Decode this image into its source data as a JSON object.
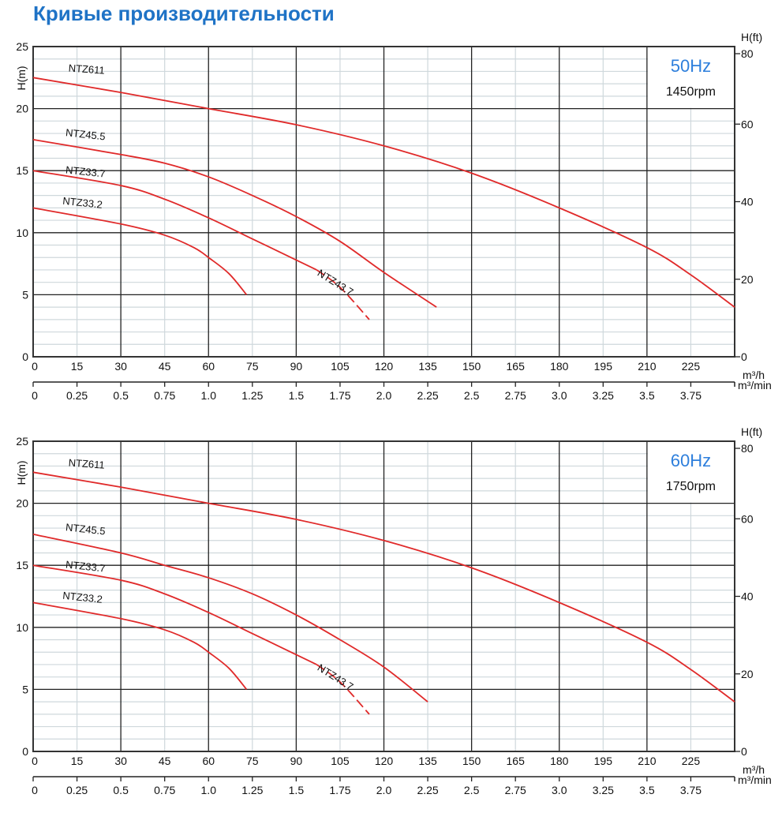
{
  "title": "Кривые производительности",
  "colors": {
    "title": "#1f73c6",
    "curve": "#e02a2a",
    "freq": "#2e7fdc",
    "major_grid": "#222222",
    "minor_grid": "#cfd8dc"
  },
  "chart_data": [
    {
      "type": "line",
      "frequency": "50Hz",
      "speed": "1450rpm",
      "ylabel_left": "H(m)",
      "ylabel_right": "H(ft)",
      "xlabel_primary": "m³/h",
      "xlabel_secondary": "m³/min",
      "xlim": [
        0,
        240
      ],
      "ylim": [
        0,
        25
      ],
      "ylim_ft": [
        0,
        80
      ],
      "grid": true,
      "x_ticks": [
        "0",
        "15",
        "30",
        "45",
        "60",
        "75",
        "90",
        "105",
        "120",
        "135",
        "150",
        "165",
        "180",
        "195",
        "210",
        "225"
      ],
      "x_ticks_min": [
        "0",
        "0.25",
        "0.5",
        "0.75",
        "1.0",
        "1.25",
        "1.5",
        "1.75",
        "2.0",
        "2.25",
        "2.5",
        "2.75",
        "3.0",
        "3.25",
        "3.5",
        "3.75"
      ],
      "y_ticks": [
        "0",
        "5",
        "10",
        "15",
        "20",
        "25"
      ],
      "y_ticks_ft": [
        "0",
        "20",
        "40",
        "60",
        "80"
      ],
      "series": [
        {
          "name": "NTZ611",
          "points": [
            [
              0,
              22.5
            ],
            [
              30,
              21.3
            ],
            [
              60,
              20
            ],
            [
              90,
              18.7
            ],
            [
              120,
              17
            ],
            [
              150,
              14.8
            ],
            [
              180,
              12
            ],
            [
              210,
              8.8
            ],
            [
              225,
              6.6
            ],
            [
              240,
              4
            ]
          ]
        },
        {
          "name": "NTZ45.5",
          "points": [
            [
              0,
              17.5
            ],
            [
              30,
              16.3
            ],
            [
              45,
              15.6
            ],
            [
              60,
              14.5
            ],
            [
              75,
              13
            ],
            [
              90,
              11.3
            ],
            [
              105,
              9.3
            ],
            [
              120,
              6.8
            ],
            [
              138,
              4
            ]
          ]
        },
        {
          "name": "NTZ33.7",
          "points": [
            [
              0,
              15
            ],
            [
              30,
              13.8
            ],
            [
              45,
              12.7
            ],
            [
              60,
              11.2
            ],
            [
              75,
              9.5
            ],
            [
              90,
              7.8
            ],
            [
              97,
              7
            ]
          ]
        },
        {
          "name": "NTZ43.7",
          "dashed": true,
          "points": [
            [
              97,
              7
            ],
            [
              105,
              5.6
            ],
            [
              115,
              3
            ]
          ]
        },
        {
          "name": "NTZ33.2",
          "points": [
            [
              0,
              12
            ],
            [
              30,
              10.7
            ],
            [
              45,
              9.8
            ],
            [
              55,
              8.8
            ],
            [
              60,
              8
            ],
            [
              67,
              6.7
            ],
            [
              73,
              5
            ]
          ]
        }
      ]
    },
    {
      "type": "line",
      "frequency": "60Hz",
      "speed": "1750rpm",
      "ylabel_left": "H(m)",
      "ylabel_right": "H(ft)",
      "xlabel_primary": "m³/h",
      "xlabel_secondary": "m³/min",
      "xlim": [
        0,
        240
      ],
      "ylim": [
        0,
        25
      ],
      "ylim_ft": [
        0,
        80
      ],
      "grid": true,
      "x_ticks": [
        "0",
        "15",
        "30",
        "45",
        "60",
        "75",
        "90",
        "105",
        "120",
        "135",
        "150",
        "165",
        "180",
        "195",
        "210",
        "225"
      ],
      "x_ticks_min": [
        "0",
        "0.25",
        "0.5",
        "0.75",
        "1.0",
        "1.25",
        "1.5",
        "1.75",
        "2.0",
        "2.25",
        "2.5",
        "2.75",
        "3.0",
        "3.25",
        "3.5",
        "3.75"
      ],
      "y_ticks": [
        "0",
        "5",
        "10",
        "15",
        "20",
        "25"
      ],
      "y_ticks_ft": [
        "0",
        "20",
        "40",
        "60",
        "80"
      ],
      "series": [
        {
          "name": "NTZ611",
          "points": [
            [
              0,
              22.5
            ],
            [
              30,
              21.3
            ],
            [
              60,
              20
            ],
            [
              90,
              18.7
            ],
            [
              120,
              17
            ],
            [
              150,
              14.8
            ],
            [
              180,
              12
            ],
            [
              210,
              8.8
            ],
            [
              225,
              6.6
            ],
            [
              240,
              4
            ]
          ]
        },
        {
          "name": "NTZ45.5",
          "points": [
            [
              0,
              17.5
            ],
            [
              30,
              16
            ],
            [
              45,
              15
            ],
            [
              60,
              14
            ],
            [
              75,
              12.7
            ],
            [
              90,
              11
            ],
            [
              105,
              9
            ],
            [
              120,
              6.8
            ],
            [
              135,
              4
            ]
          ]
        },
        {
          "name": "NTZ33.7",
          "points": [
            [
              0,
              15
            ],
            [
              30,
              13.8
            ],
            [
              45,
              12.7
            ],
            [
              60,
              11.2
            ],
            [
              75,
              9.5
            ],
            [
              90,
              7.8
            ],
            [
              97,
              7
            ]
          ]
        },
        {
          "name": "NTZ43.7",
          "dashed": true,
          "points": [
            [
              97,
              7
            ],
            [
              105,
              5.6
            ],
            [
              115,
              3
            ]
          ]
        },
        {
          "name": "NTZ33.2",
          "points": [
            [
              0,
              12
            ],
            [
              30,
              10.7
            ],
            [
              45,
              9.8
            ],
            [
              55,
              8.8
            ],
            [
              60,
              8
            ],
            [
              67,
              6.7
            ],
            [
              73,
              5
            ]
          ]
        }
      ]
    }
  ]
}
